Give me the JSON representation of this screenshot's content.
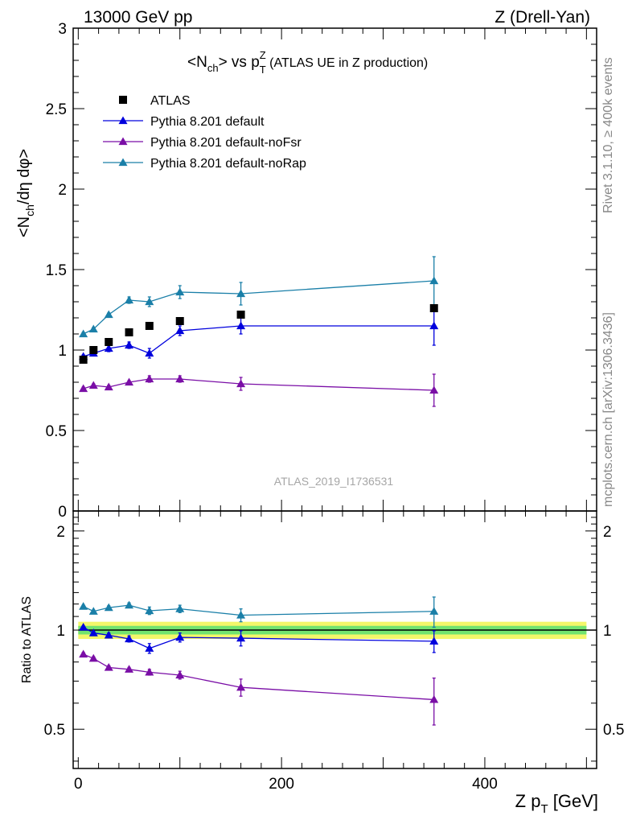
{
  "header": {
    "left": "13000 GeV pp",
    "right": "Z (Drell-Yan)"
  },
  "side_labels": {
    "rivet": "Rivet 3.1.10, ≥ 400k events",
    "mcplots": "mcplots.cern.ch [arXiv:1306.3436]"
  },
  "watermark": "ATLAS_2019_I1736531",
  "colors": {
    "atlas": "#000000",
    "default": "#0000dd",
    "noFsr": "#7a0ea6",
    "noRap": "#1a7fa8",
    "band_inner": "#73e36f",
    "band_outer": "#f4f76a"
  },
  "chart_data": [
    {
      "type": "line",
      "title_parts": {
        "n": "<N",
        "ch": "ch",
        "rest": "> vs p",
        "sup": "Z",
        "sub": "T",
        "tail": " (ATLAS UE in Z production)"
      },
      "ylabel_parts": {
        "a": "<N",
        "sub": "ch",
        "b": "/dη dφ>"
      },
      "ylim": [
        0,
        3
      ],
      "yticks": [
        "0",
        "0.5",
        "1",
        "1.5",
        "2",
        "2.5",
        "3"
      ],
      "x": [
        5,
        15,
        30,
        50,
        70,
        100,
        160,
        350
      ],
      "series": [
        {
          "name": "ATLAS",
          "key": "atlas",
          "marker": "square",
          "values": [
            0.94,
            1.0,
            1.05,
            1.11,
            1.15,
            1.18,
            1.22,
            1.26
          ],
          "err": [
            0.01,
            0.01,
            0.01,
            0.01,
            0.01,
            0.01,
            0.01,
            0.01
          ]
        },
        {
          "name": "Pythia 8.201 default",
          "key": "default",
          "marker": "triangle",
          "values": [
            0.96,
            0.98,
            1.01,
            1.03,
            0.98,
            1.12,
            1.15,
            1.15
          ],
          "err": [
            0.01,
            0.01,
            0.02,
            0.02,
            0.03,
            0.03,
            0.05,
            0.12
          ]
        },
        {
          "name": "Pythia 8.201 default-noFsr",
          "key": "noFsr",
          "marker": "triangle",
          "values": [
            0.76,
            0.78,
            0.77,
            0.8,
            0.82,
            0.82,
            0.79,
            0.75
          ],
          "err": [
            0.01,
            0.01,
            0.01,
            0.01,
            0.02,
            0.02,
            0.04,
            0.1
          ]
        },
        {
          "name": "Pythia 8.201 default-noRap",
          "key": "noRap",
          "marker": "triangle",
          "values": [
            1.1,
            1.13,
            1.22,
            1.31,
            1.3,
            1.36,
            1.35,
            1.43
          ],
          "err": [
            0.01,
            0.01,
            0.01,
            0.02,
            0.03,
            0.04,
            0.07,
            0.15
          ]
        }
      ]
    },
    {
      "type": "line",
      "ylabel": "Ratio to ATLAS",
      "xlabel_parts": {
        "a": "Z p",
        "sub": "T",
        "b": " [GeV]"
      },
      "xlim": [
        -5,
        510
      ],
      "xticks": [
        "0",
        "200",
        "400"
      ],
      "ylim": [
        0.38,
        2.3
      ],
      "yticks": [
        "0.5",
        "1",
        "2"
      ],
      "x": [
        5,
        15,
        30,
        50,
        70,
        100,
        160,
        350
      ],
      "band": {
        "inner": 0.03,
        "outer": 0.06
      },
      "series": [
        {
          "name": "Pythia 8.201 default",
          "key": "default",
          "values": [
            1.02,
            0.98,
            0.965,
            0.94,
            0.88,
            0.95,
            0.945,
            0.925
          ],
          "err": [
            0.01,
            0.01,
            0.015,
            0.02,
            0.03,
            0.03,
            0.05,
            0.07
          ]
        },
        {
          "name": "Pythia 8.201 default-noFsr",
          "key": "noFsr",
          "values": [
            0.845,
            0.82,
            0.77,
            0.76,
            0.745,
            0.73,
            0.67,
            0.615
          ],
          "err": [
            0.01,
            0.01,
            0.01,
            0.01,
            0.015,
            0.02,
            0.04,
            0.1
          ]
        },
        {
          "name": "Pythia 8.201 default-noRap",
          "key": "noRap",
          "values": [
            1.18,
            1.14,
            1.17,
            1.19,
            1.145,
            1.16,
            1.11,
            1.14
          ],
          "err": [
            0.01,
            0.01,
            0.015,
            0.02,
            0.03,
            0.03,
            0.05,
            0.12
          ]
        }
      ]
    }
  ]
}
